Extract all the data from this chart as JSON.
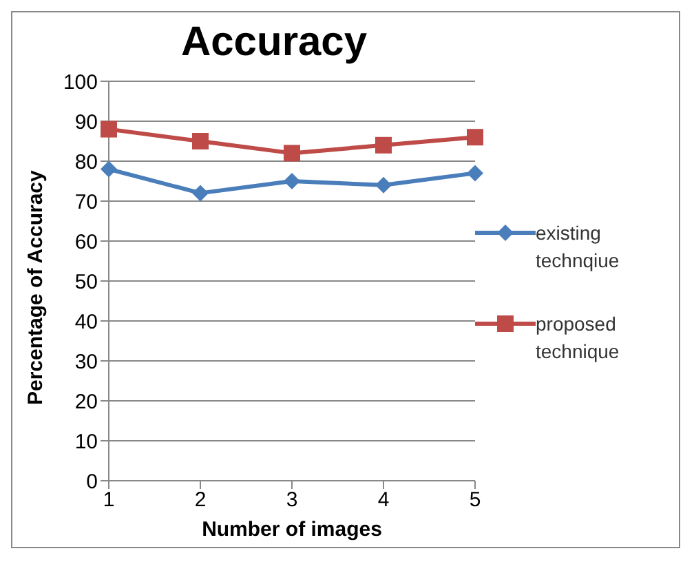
{
  "chart_data": {
    "type": "line",
    "title": "Accuracy",
    "xlabel": "Number of images",
    "ylabel": "Percentage of Accuracy",
    "categories": [
      "1",
      "2",
      "3",
      "4",
      "5"
    ],
    "series": [
      {
        "name": "existing technqiue",
        "color": "#4a7ebb",
        "marker": "diamond",
        "values": [
          78,
          72,
          75,
          74,
          77
        ]
      },
      {
        "name": "proposed technique",
        "color": "#be4b48",
        "marker": "square",
        "values": [
          88,
          85,
          82,
          84,
          86
        ]
      }
    ],
    "ylim": [
      0,
      100
    ],
    "yticks": [
      0,
      10,
      20,
      30,
      40,
      50,
      60,
      70,
      80,
      90,
      100
    ],
    "grid": "y",
    "legend": "right"
  }
}
